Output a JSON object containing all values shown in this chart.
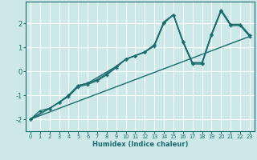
{
  "xlabel": "Humidex (Indice chaleur)",
  "ylabel": "",
  "xlim": [
    -0.5,
    23.5
  ],
  "ylim": [
    -2.5,
    2.9
  ],
  "yticks": [
    -2,
    -1,
    0,
    1,
    2
  ],
  "xticks": [
    0,
    1,
    2,
    3,
    4,
    5,
    6,
    7,
    8,
    9,
    10,
    11,
    12,
    13,
    14,
    15,
    16,
    17,
    18,
    19,
    20,
    21,
    22,
    23
  ],
  "bg_color": "#cde8e8",
  "line_color": "#1a6b6b",
  "grid_color": "#ffffff",
  "lines": [
    {
      "x": [
        0,
        1,
        2,
        3,
        4,
        5,
        6,
        7,
        8,
        9,
        10,
        11,
        12,
        13,
        14,
        15,
        16,
        17,
        18,
        19,
        20,
        21,
        22,
        23
      ],
      "y": [
        -2.0,
        -1.65,
        -1.55,
        -1.3,
        -1.05,
        -0.65,
        -0.55,
        -0.4,
        -0.15,
        0.15,
        0.5,
        0.65,
        0.8,
        1.05,
        2.0,
        2.35,
        1.2,
        0.3,
        0.3,
        1.5,
        2.5,
        1.9,
        1.9,
        1.45
      ]
    },
    {
      "x": [
        0,
        2,
        3,
        4,
        5,
        6,
        7,
        8,
        9,
        10,
        11,
        12,
        13,
        14,
        15,
        16,
        17,
        18,
        19,
        20,
        21,
        22,
        23
      ],
      "y": [
        -2.0,
        -1.55,
        -1.3,
        -1.0,
        -0.6,
        -0.5,
        -0.35,
        -0.1,
        0.2,
        0.5,
        0.65,
        0.8,
        1.1,
        2.05,
        2.35,
        1.25,
        0.35,
        0.35,
        1.55,
        2.55,
        1.95,
        1.95,
        1.5
      ]
    },
    {
      "x": [
        0,
        23
      ],
      "y": [
        -2.0,
        1.45
      ]
    },
    {
      "x": [
        0,
        2,
        3,
        4,
        5,
        6,
        9,
        10,
        11,
        12,
        13,
        14,
        15,
        16,
        17,
        18,
        19,
        20,
        21,
        22,
        23
      ],
      "y": [
        -2.0,
        -1.55,
        -1.3,
        -1.0,
        -0.6,
        -0.5,
        0.2,
        0.5,
        0.65,
        0.8,
        1.1,
        2.05,
        2.35,
        1.25,
        0.35,
        0.35,
        1.55,
        2.55,
        1.95,
        1.95,
        1.5
      ]
    }
  ]
}
